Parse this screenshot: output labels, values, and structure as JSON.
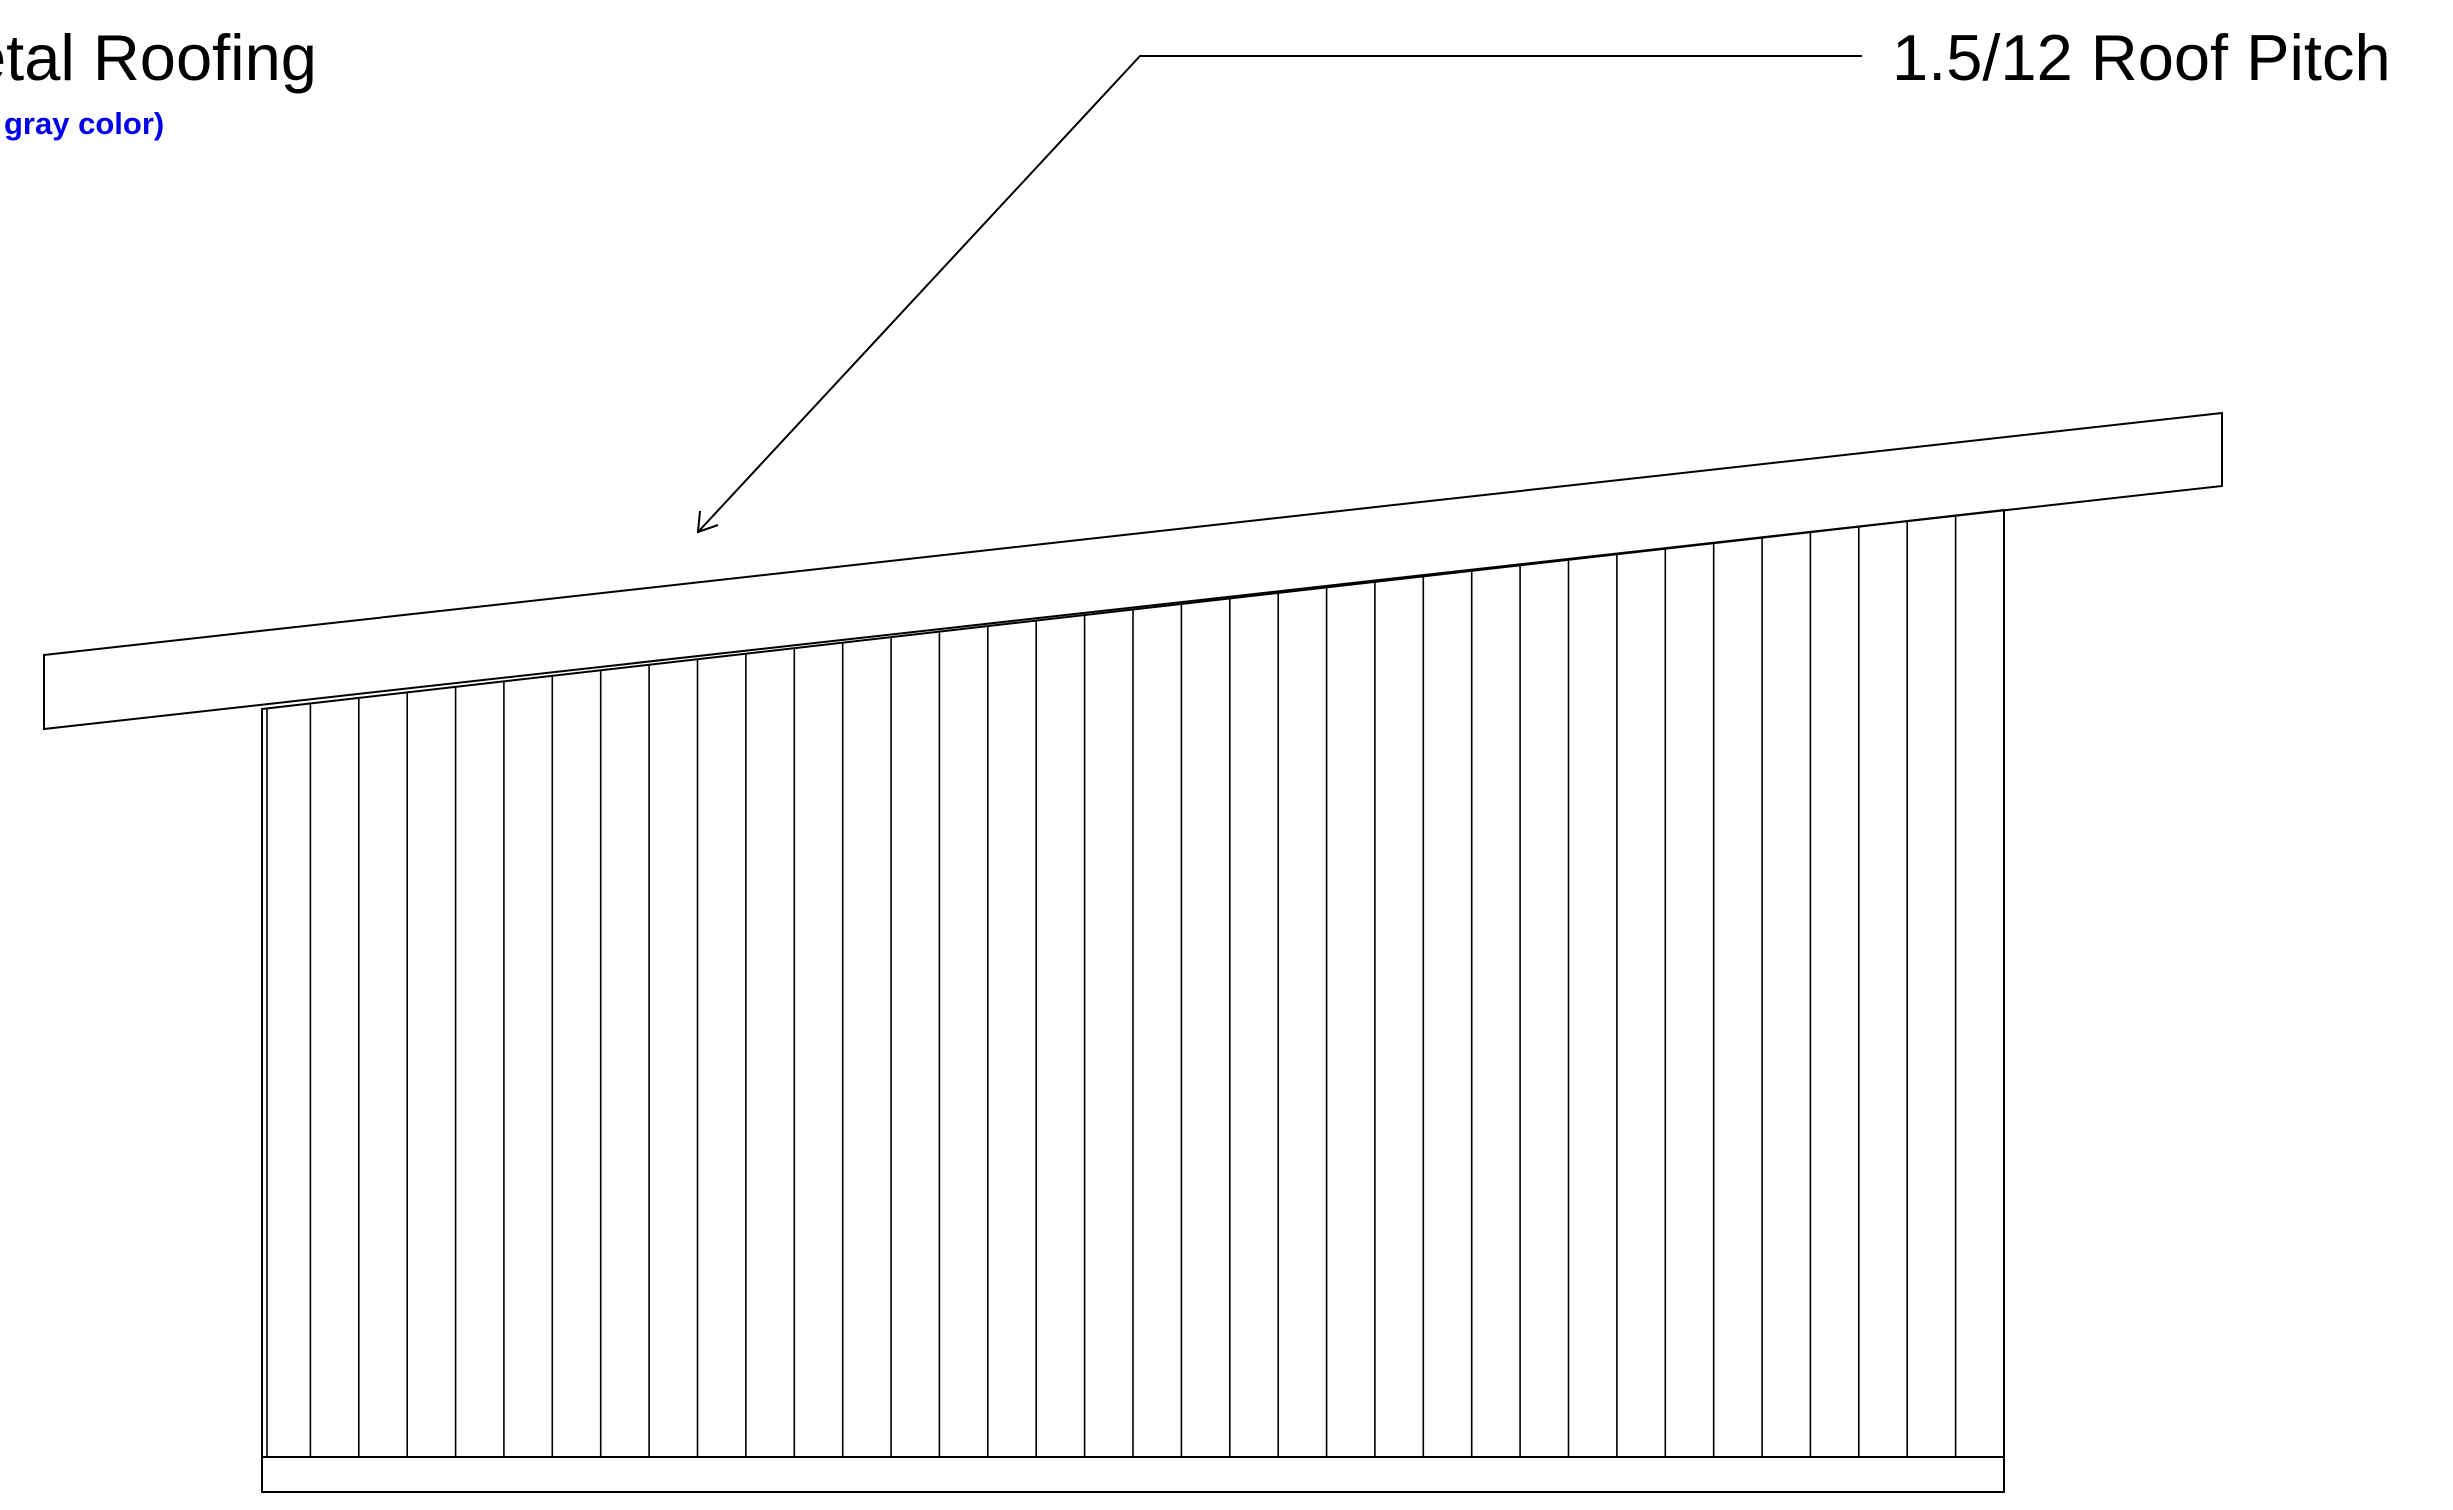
{
  "labels": {
    "roofing_title": "etal Roofing",
    "roofing_note": "gray color)",
    "pitch_label": "1.5/12 Roof Pitch"
  },
  "colors": {
    "line": "#000000",
    "note": "#0000ee",
    "background": "#ffffff"
  },
  "elevation": {
    "siding_panel_count": 36
  }
}
